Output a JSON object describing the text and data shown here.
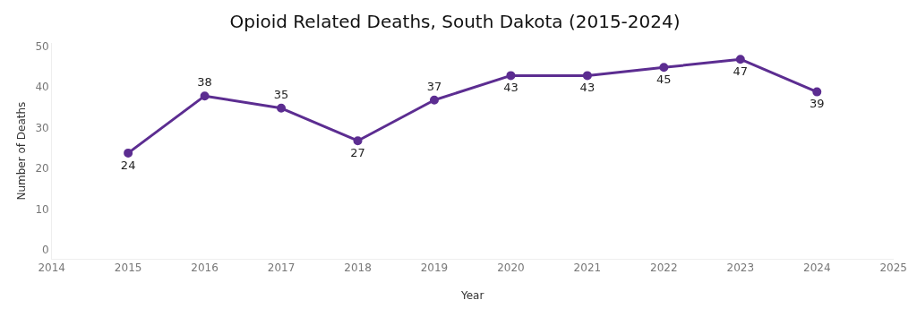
{
  "chart_data": {
    "type": "line",
    "title": "Opioid Related Deaths, South Dakota (2015-2024)",
    "xlabel": "Year",
    "ylabel": "Number of Deaths",
    "x": [
      2015,
      2016,
      2017,
      2018,
      2019,
      2020,
      2021,
      2022,
      2023,
      2024
    ],
    "series": [
      {
        "color": "#5c2d91",
        "values": [
          24,
          38,
          35,
          27,
          37,
          43,
          43,
          45,
          47,
          39
        ]
      }
    ],
    "xlim": [
      2014,
      2025
    ],
    "xticks": [
      2014,
      2015,
      2016,
      2017,
      2018,
      2019,
      2020,
      2021,
      2022,
      2023,
      2024,
      2025
    ],
    "ylim": [
      -2,
      51
    ],
    "yticks": [
      0,
      10,
      20,
      30,
      40,
      50
    ],
    "grid": false,
    "legend": false,
    "marker": "circle",
    "line_style": "solid",
    "data_labels": true
  }
}
